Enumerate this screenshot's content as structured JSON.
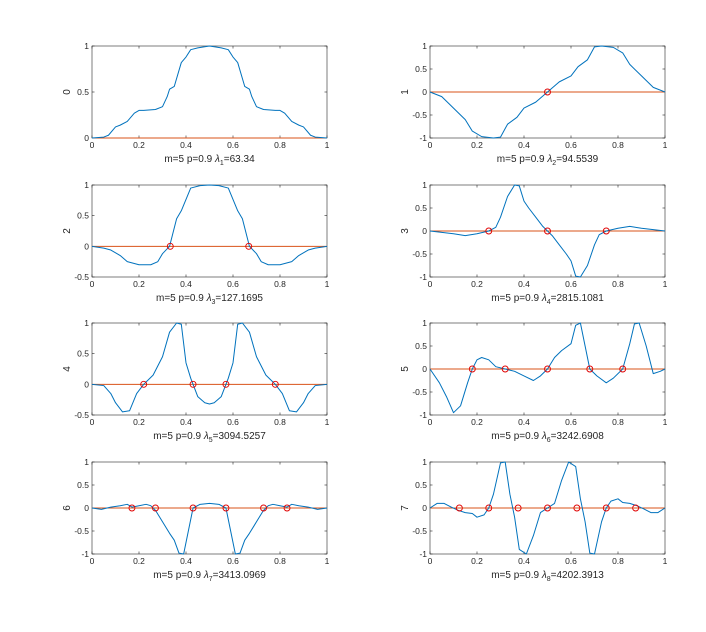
{
  "chart_data": [
    {
      "type": "line",
      "ylabel": "0",
      "xlabel": "m=5 p=0.9",
      "lambda_label": "λ",
      "lambda_sub": "1",
      "lambda_value": "=63.34",
      "xlim": [
        0,
        1
      ],
      "ylim": [
        0,
        1
      ],
      "xticks": [
        0,
        0.2,
        0.4,
        0.6,
        0.8,
        1
      ],
      "yticks": [
        0,
        0.5,
        1
      ],
      "series": [
        {
          "x": [
            0,
            0.05,
            0.07,
            0.1,
            0.12,
            0.15,
            0.18,
            0.2,
            0.22,
            0.27,
            0.3,
            0.32,
            0.33,
            0.35,
            0.38,
            0.4,
            0.42,
            0.45,
            0.5,
            0.55,
            0.58,
            0.6,
            0.62,
            0.65,
            0.67,
            0.68,
            0.7,
            0.73,
            0.78,
            0.8,
            0.82,
            0.85,
            0.88,
            0.9,
            0.93,
            0.95,
            1
          ],
          "y": [
            0,
            0.01,
            0.03,
            0.12,
            0.14,
            0.18,
            0.27,
            0.3,
            0.3,
            0.31,
            0.34,
            0.45,
            0.53,
            0.56,
            0.82,
            0.88,
            0.96,
            0.98,
            1,
            0.98,
            0.96,
            0.88,
            0.82,
            0.56,
            0.53,
            0.45,
            0.34,
            0.31,
            0.3,
            0.3,
            0.27,
            0.18,
            0.14,
            0.12,
            0.03,
            0.01,
            0
          ]
        }
      ],
      "zero_markers": []
    },
    {
      "type": "line",
      "ylabel": "1",
      "xlabel": "m=5 p=0.9",
      "lambda_label": "λ",
      "lambda_sub": "2",
      "lambda_value": "=94.5539",
      "xlim": [
        0,
        1
      ],
      "ylim": [
        -1,
        1
      ],
      "xticks": [
        0,
        0.2,
        0.4,
        0.6,
        0.8,
        1
      ],
      "yticks": [
        -1,
        -0.5,
        0,
        0.5,
        1
      ],
      "series": [
        {
          "x": [
            0,
            0.05,
            0.1,
            0.15,
            0.18,
            0.22,
            0.27,
            0.3,
            0.33,
            0.37,
            0.4,
            0.45,
            0.5,
            0.55,
            0.6,
            0.63,
            0.67,
            0.7,
            0.73,
            0.78,
            0.82,
            0.85,
            0.9,
            0.95,
            1
          ],
          "y": [
            0,
            -0.1,
            -0.35,
            -0.6,
            -0.85,
            -0.97,
            -1,
            -0.98,
            -0.7,
            -0.55,
            -0.35,
            -0.22,
            0,
            0.22,
            0.35,
            0.55,
            0.7,
            0.98,
            1,
            0.97,
            0.85,
            0.6,
            0.35,
            0.1,
            0
          ]
        }
      ],
      "zero_markers": [
        0.5
      ]
    },
    {
      "type": "line",
      "ylabel": "2",
      "xlabel": "m=5 p=0.9",
      "lambda_label": "λ",
      "lambda_sub": "3",
      "lambda_value": "=127.1695",
      "xlim": [
        0,
        1
      ],
      "ylim": [
        -0.5,
        1
      ],
      "xticks": [
        0,
        0.2,
        0.4,
        0.6,
        0.8,
        1
      ],
      "yticks": [
        -0.5,
        0,
        0.5,
        1
      ],
      "series": [
        {
          "x": [
            0,
            0.05,
            0.08,
            0.12,
            0.15,
            0.2,
            0.25,
            0.28,
            0.3,
            0.33,
            0.36,
            0.38,
            0.42,
            0.46,
            0.5,
            0.54,
            0.58,
            0.62,
            0.64,
            0.67,
            0.7,
            0.72,
            0.75,
            0.8,
            0.85,
            0.88,
            0.92,
            0.95,
            1
          ],
          "y": [
            0,
            -0.03,
            -0.06,
            -0.15,
            -0.25,
            -0.3,
            -0.3,
            -0.25,
            -0.12,
            0,
            0.45,
            0.58,
            0.95,
            0.99,
            1,
            0.99,
            0.95,
            0.58,
            0.45,
            0,
            -0.12,
            -0.25,
            -0.3,
            -0.3,
            -0.25,
            -0.15,
            -0.06,
            -0.03,
            0
          ]
        }
      ],
      "zero_markers": [
        0.333,
        0.667
      ]
    },
    {
      "type": "line",
      "ylabel": "3",
      "xlabel": "m=5 p=0.9",
      "lambda_label": "λ",
      "lambda_sub": "4",
      "lambda_value": "=2815.1081",
      "xlim": [
        0,
        1
      ],
      "ylim": [
        -1,
        1
      ],
      "xticks": [
        0,
        0.2,
        0.4,
        0.6,
        0.8,
        1
      ],
      "yticks": [
        -1,
        -0.5,
        0,
        0.5,
        1
      ],
      "series": [
        {
          "x": [
            0,
            0.05,
            0.1,
            0.15,
            0.2,
            0.25,
            0.28,
            0.3,
            0.33,
            0.36,
            0.38,
            0.4,
            0.42,
            0.45,
            0.48,
            0.5,
            0.52,
            0.55,
            0.58,
            0.6,
            0.62,
            0.64,
            0.67,
            0.7,
            0.72,
            0.75,
            0.8,
            0.85,
            0.9,
            0.95,
            1
          ],
          "y": [
            0,
            -0.03,
            -0.06,
            -0.1,
            -0.06,
            0,
            0.08,
            0.3,
            0.75,
            1,
            0.98,
            0.65,
            0.5,
            0.3,
            0.1,
            0,
            -0.1,
            -0.3,
            -0.5,
            -0.65,
            -0.98,
            -1,
            -0.75,
            -0.3,
            -0.08,
            0,
            0.06,
            0.1,
            0.06,
            0.03,
            0
          ]
        }
      ],
      "zero_markers": [
        0.25,
        0.5,
        0.75
      ]
    },
    {
      "type": "line",
      "ylabel": "4",
      "xlabel": "m=5 p=0.9",
      "lambda_label": "λ",
      "lambda_sub": "5",
      "lambda_value": "=3094.5257",
      "xlim": [
        0,
        1
      ],
      "ylim": [
        -0.5,
        1
      ],
      "xticks": [
        0,
        0.2,
        0.4,
        0.6,
        0.8,
        1
      ],
      "yticks": [
        -0.5,
        0,
        0.5,
        1
      ],
      "series": [
        {
          "x": [
            0,
            0.05,
            0.08,
            0.1,
            0.13,
            0.16,
            0.19,
            0.22,
            0.26,
            0.3,
            0.33,
            0.36,
            0.38,
            0.4,
            0.42,
            0.45,
            0.48,
            0.5,
            0.52,
            0.55,
            0.58,
            0.6,
            0.62,
            0.64,
            0.67,
            0.7,
            0.74,
            0.78,
            0.81,
            0.84,
            0.87,
            0.9,
            0.92,
            0.95,
            1
          ],
          "y": [
            0,
            -0.02,
            -0.15,
            -0.3,
            -0.45,
            -0.43,
            -0.15,
            0,
            0.15,
            0.45,
            0.85,
            1,
            0.98,
            0.35,
            0.1,
            -0.2,
            -0.3,
            -0.32,
            -0.3,
            -0.2,
            0.1,
            0.35,
            0.98,
            1,
            0.85,
            0.45,
            0.15,
            0,
            -0.15,
            -0.43,
            -0.45,
            -0.3,
            -0.15,
            -0.02,
            0
          ]
        }
      ],
      "zero_markers": [
        0.22,
        0.43,
        0.57,
        0.78
      ]
    },
    {
      "type": "line",
      "ylabel": "5",
      "xlabel": "m=5 p=0.9",
      "lambda_label": "λ",
      "lambda_sub": "6",
      "lambda_value": "=3242.6908",
      "xlim": [
        0,
        1
      ],
      "ylim": [
        -1,
        1
      ],
      "xticks": [
        0,
        0.2,
        0.4,
        0.6,
        0.8,
        1
      ],
      "yticks": [
        -1,
        -0.5,
        0,
        0.5,
        1
      ],
      "series": [
        {
          "x": [
            0,
            0.04,
            0.07,
            0.1,
            0.13,
            0.16,
            0.18,
            0.2,
            0.22,
            0.25,
            0.28,
            0.32,
            0.36,
            0.4,
            0.44,
            0.47,
            0.5,
            0.53,
            0.56,
            0.6,
            0.62,
            0.64,
            0.66,
            0.68,
            0.71,
            0.75,
            0.78,
            0.82,
            0.85,
            0.87,
            0.89,
            0.92,
            0.95,
            0.98,
            1
          ],
          "y": [
            0,
            -0.3,
            -0.6,
            -0.95,
            -0.8,
            -0.3,
            0,
            0.2,
            0.25,
            0.2,
            0.05,
            0,
            -0.05,
            -0.15,
            -0.25,
            -0.15,
            0,
            0.25,
            0.4,
            0.55,
            0.95,
            1,
            0.5,
            0,
            -0.15,
            -0.3,
            -0.2,
            0,
            0.55,
            0.98,
            1,
            0.5,
            -0.1,
            -0.05,
            0
          ]
        }
      ],
      "zero_markers": [
        0.18,
        0.32,
        0.5,
        0.68,
        0.82
      ]
    },
    {
      "type": "line",
      "ylabel": "6",
      "xlabel": "m=5 p=0.9",
      "lambda_label": "λ",
      "lambda_sub": "7",
      "lambda_value": "=3413.0969",
      "xlim": [
        0,
        1
      ],
      "ylim": [
        -1,
        1
      ],
      "xticks": [
        0,
        0.2,
        0.4,
        0.6,
        0.8,
        1
      ],
      "yticks": [
        -1,
        -0.5,
        0,
        0.5,
        1
      ],
      "series": [
        {
          "x": [
            0,
            0.04,
            0.08,
            0.12,
            0.15,
            0.17,
            0.2,
            0.23,
            0.25,
            0.27,
            0.3,
            0.33,
            0.35,
            0.37,
            0.39,
            0.41,
            0.43,
            0.46,
            0.5,
            0.54,
            0.57,
            0.59,
            0.61,
            0.63,
            0.65,
            0.67,
            0.7,
            0.73,
            0.75,
            0.77,
            0.8,
            0.83,
            0.85,
            0.88,
            0.92,
            0.96,
            1
          ],
          "y": [
            0,
            -0.03,
            0.02,
            0.05,
            0.08,
            0.02,
            0.05,
            0.08,
            0.05,
            -0.05,
            -0.3,
            -0.55,
            -0.7,
            -0.98,
            -1,
            -0.5,
            0,
            0.08,
            0.1,
            0.08,
            0,
            -0.5,
            -1,
            -0.98,
            -0.7,
            -0.55,
            -0.3,
            -0.05,
            0.05,
            0.08,
            0.05,
            0.02,
            0.08,
            0.05,
            0.02,
            -0.03,
            0
          ]
        }
      ],
      "zero_markers": [
        0.17,
        0.27,
        0.43,
        0.57,
        0.73,
        0.83
      ]
    },
    {
      "type": "line",
      "ylabel": "7",
      "xlabel": "m=5 p=0.9",
      "lambda_label": "λ",
      "lambda_sub": "8",
      "lambda_value": "=4202.3913",
      "xlim": [
        0,
        1
      ],
      "ylim": [
        -1,
        1
      ],
      "xticks": [
        0,
        0.2,
        0.4,
        0.6,
        0.8,
        1
      ],
      "yticks": [
        -1,
        -0.5,
        0,
        0.5,
        1
      ],
      "series": [
        {
          "x": [
            0,
            0.03,
            0.06,
            0.09,
            0.12,
            0.15,
            0.18,
            0.2,
            0.23,
            0.25,
            0.27,
            0.3,
            0.32,
            0.34,
            0.36,
            0.38,
            0.41,
            0.44,
            0.47,
            0.5,
            0.53,
            0.56,
            0.59,
            0.62,
            0.64,
            0.66,
            0.68,
            0.7,
            0.73,
            0.75,
            0.77,
            0.8,
            0.82,
            0.85,
            0.88,
            0.91,
            0.94,
            0.97,
            1
          ],
          "y": [
            0,
            0.1,
            0.1,
            0.02,
            -0.05,
            -0.1,
            -0.12,
            -0.2,
            -0.15,
            0,
            0.3,
            0.98,
            1,
            0.3,
            -0.2,
            -0.9,
            -1,
            -0.6,
            -0.1,
            0,
            0.1,
            0.6,
            1,
            0.9,
            0.2,
            -0.3,
            -0.98,
            -1,
            -0.3,
            0,
            0.15,
            0.2,
            0.12,
            0.1,
            0.05,
            -0.02,
            -0.1,
            -0.1,
            0
          ]
        }
      ],
      "zero_markers": [
        0.125,
        0.25,
        0.375,
        0.5,
        0.625,
        0.75,
        0.875
      ]
    }
  ]
}
